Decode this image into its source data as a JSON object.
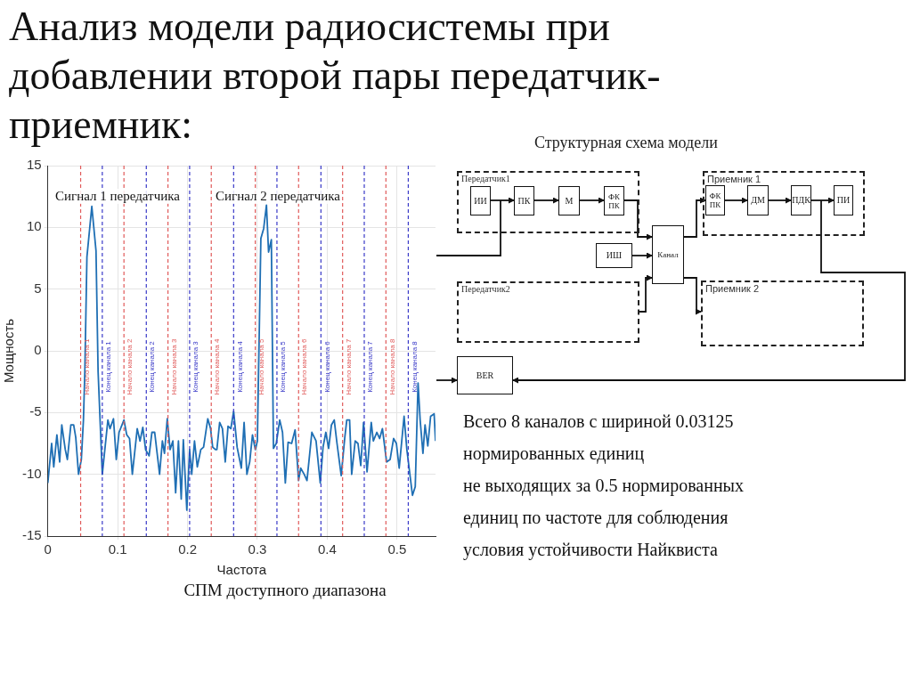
{
  "chart_data": [
    {
      "type": "line",
      "title": "Анализ модели радиосистемы при добавлении второй пары передатчик-приемник:",
      "xlabel": "Частота",
      "ylabel": "Мощность",
      "x": [
        0,
        0.0055,
        0.0085,
        0.013,
        0.017,
        0.02,
        0.025,
        0.028,
        0.033,
        0.037,
        0.04,
        0.044,
        0.048,
        0.051,
        0.053,
        0.056,
        0.063,
        0.069,
        0.072,
        0.078,
        0.082,
        0.086,
        0.089,
        0.094,
        0.098,
        0.102,
        0.109,
        0.113,
        0.117,
        0.121,
        0.128,
        0.132,
        0.136,
        0.14,
        0.145,
        0.149,
        0.153,
        0.16,
        0.164,
        0.167,
        0.171,
        0.175,
        0.179,
        0.183,
        0.187,
        0.191,
        0.194,
        0.199,
        0.203,
        0.206,
        0.21,
        0.214,
        0.219,
        0.223,
        0.229,
        0.233,
        0.236,
        0.24,
        0.242,
        0.246,
        0.25,
        0.254,
        0.258,
        0.262,
        0.266,
        0.271,
        0.277,
        0.281,
        0.285,
        0.289,
        0.293,
        0.297,
        0.3,
        0.305,
        0.309,
        0.313,
        0.316,
        0.32,
        0.323,
        0.327,
        0.332,
        0.336,
        0.34,
        0.344,
        0.349,
        0.354,
        0.359,
        0.362,
        0.367,
        0.371,
        0.378,
        0.384,
        0.39,
        0.394,
        0.398,
        0.402,
        0.406,
        0.41,
        0.414,
        0.42,
        0.425,
        0.428,
        0.432,
        0.435,
        0.44,
        0.444,
        0.448,
        0.452,
        0.457,
        0.463,
        0.466,
        0.471,
        0.475,
        0.479,
        0.485,
        0.49,
        0.495,
        0.499,
        0.503,
        0.51,
        0.514,
        0.522,
        0.526,
        0.53,
        0.533,
        0.537,
        0.54,
        0.544,
        0.548,
        0.553,
        0.555
      ],
      "series": [
        {
          "color": "#1f6fb4",
          "values": [
            -10.7,
            -7.5,
            -9.4,
            -6.8,
            -9,
            -6,
            -8,
            -8.8,
            -6,
            -6,
            -7,
            -10,
            -8.8,
            -5.6,
            -1.7,
            7.6,
            11.7,
            8.1,
            -1.7,
            -10,
            -7.8,
            -5.6,
            -6.3,
            -5.5,
            -8.8,
            -6.6,
            -5.6,
            -6.8,
            -7.1,
            -10,
            -6.3,
            -7.3,
            -6.2,
            -8,
            -8.5,
            -6.6,
            -6.6,
            -10,
            -7.3,
            -8.3,
            -5.5,
            -8,
            -7.3,
            -11.5,
            -7.3,
            -12,
            -7.2,
            -12.9,
            -8,
            -10,
            -7.3,
            -9.4,
            -8,
            -7.8,
            -5.5,
            -6.3,
            -7.8,
            -8,
            -8,
            -5.8,
            -6.3,
            -9,
            -6.1,
            -6.3,
            -4.9,
            -7.8,
            -9.5,
            -5.8,
            -10,
            -9,
            -6.8,
            -8,
            -7.3,
            9.1,
            9.9,
            11.8,
            8,
            9,
            -7.9,
            -7.5,
            -5.6,
            -6.6,
            -10.7,
            -7.4,
            -7.5,
            -6.4,
            -10.5,
            -9.5,
            -10,
            -10.5,
            -6.6,
            -7.3,
            -10.7,
            -7.8,
            -6.6,
            -7.9,
            -6,
            -5.6,
            -7.5,
            -10.1,
            -7.1,
            -5.6,
            -5.6,
            -10,
            -7.3,
            -7.5,
            -9.3,
            -5.8,
            -9.8,
            -5.8,
            -7.3,
            -6.6,
            -7.1,
            -6.3,
            -9,
            -8.8,
            -7.1,
            -7.5,
            -9.5,
            -5.3,
            -8,
            -11.7,
            -11,
            -2.6,
            -5.6,
            -8.3,
            -6,
            -7.7,
            -5.3,
            -5.1,
            -7.3
          ]
        }
      ],
      "xlim": [
        0,
        0.555
      ],
      "xticks": [
        0,
        0.1,
        0.2,
        0.3,
        0.4,
        0.5
      ],
      "ylim": [
        -15,
        15
      ],
      "yticks": [
        -15,
        -10,
        -5,
        0,
        5,
        10,
        15
      ],
      "grid": true,
      "ref_lines": [
        {
          "axis": "x",
          "value": 0.047,
          "label": "Начало канала 1",
          "color": "#e05a5a",
          "line_style": "dashed"
        },
        {
          "axis": "x",
          "value": 0.078,
          "label": "Конец канала 1",
          "color": "#3a3ac8",
          "line_style": "dashed"
        },
        {
          "axis": "x",
          "value": 0.109,
          "label": "Начало канала 2",
          "color": "#e05a5a",
          "line_style": "dashed"
        },
        {
          "axis": "x",
          "value": 0.141,
          "label": "Конец канала 2",
          "color": "#3a3ac8",
          "line_style": "dashed"
        },
        {
          "axis": "x",
          "value": 0.172,
          "label": "Начало канала 3",
          "color": "#e05a5a",
          "line_style": "dashed"
        },
        {
          "axis": "x",
          "value": 0.203,
          "label": "Конец канала 3",
          "color": "#3a3ac8",
          "line_style": "dashed"
        },
        {
          "axis": "x",
          "value": 0.234,
          "label": "Начало канала 4",
          "color": "#e05a5a",
          "line_style": "dashed"
        },
        {
          "axis": "x",
          "value": 0.266,
          "label": "Конец канала 4",
          "color": "#3a3ac8",
          "line_style": "dashed"
        },
        {
          "axis": "x",
          "value": 0.297,
          "label": "Начало канала 5",
          "color": "#e05a5a",
          "line_style": "dashed"
        },
        {
          "axis": "x",
          "value": 0.328,
          "label": "Конец канала 5",
          "color": "#3a3ac8",
          "line_style": "dashed"
        },
        {
          "axis": "x",
          "value": 0.359,
          "label": "Начало канала 6",
          "color": "#e05a5a",
          "line_style": "dashed"
        },
        {
          "axis": "x",
          "value": 0.391,
          "label": "Конец канала 6",
          "color": "#3a3ac8",
          "line_style": "dashed"
        },
        {
          "axis": "x",
          "value": 0.422,
          "label": "Начало канала 7",
          "color": "#e05a5a",
          "line_style": "dashed"
        },
        {
          "axis": "x",
          "value": 0.453,
          "label": "Конец канала 7",
          "color": "#3a3ac8",
          "line_style": "dashed"
        },
        {
          "axis": "x",
          "value": 0.484,
          "label": "Начало канала 8",
          "color": "#e05a5a",
          "line_style": "dashed"
        },
        {
          "axis": "x",
          "value": 0.516,
          "label": "Конец канала 8",
          "color": "#3a3ac8",
          "line_style": "dashed"
        }
      ],
      "annotations": [
        "Сигнал 1 передатчика",
        "Сигнал 2 передатчика",
        "СПМ доступного диапазона"
      ]
    },
    {
      "type": "other",
      "title": "Структурная схема модели",
      "annotations": [
        "Передатчик1",
        "ИИ",
        "ПК",
        "М",
        "ФК ПК",
        "ИШ",
        "Канал",
        "Передатчик2",
        "BER",
        "Приемник 1",
        "ФК ПК",
        "ДМ",
        "ПДК",
        "ПИ",
        "Приемник 2",
        "Всего 8 каналов с шириной 0.03125\nнормированных единиц\nне выходящих за 0.5 нормированных\nединиц по частоте для соблюдения\nусловия устойчивости Найквиста"
      ]
    }
  ]
}
